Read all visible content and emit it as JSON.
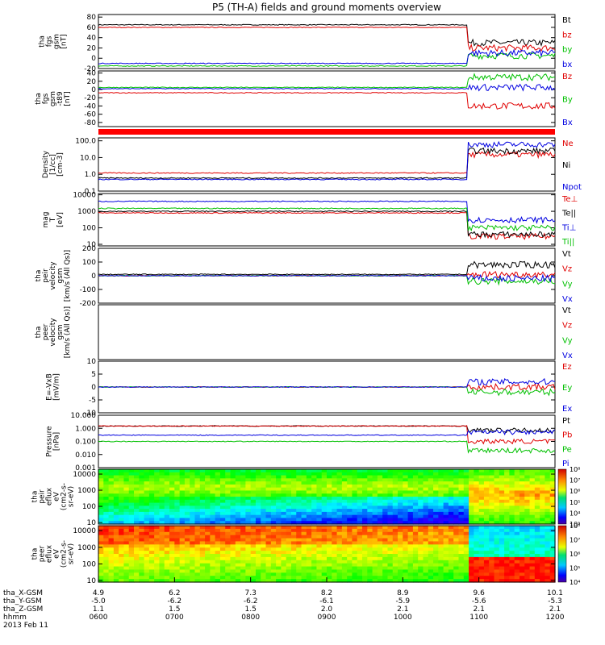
{
  "title": "P5 (TH-A) fields and ground moments overview",
  "panels": [
    {
      "id": "bgsm",
      "ylabel": [
        "tha",
        "fgs",
        "gsm",
        "[nT]"
      ],
      "ymin": -20,
      "ymax": 85,
      "ticks": [
        "-20",
        "0",
        "20",
        "40",
        "60",
        "80"
      ],
      "legend": [
        {
          "t": "Bt",
          "c": "#000000"
        },
        {
          "t": "bz",
          "c": "#e00000"
        },
        {
          "t": "by",
          "c": "#00c000"
        },
        {
          "t": "bx",
          "c": "#0000e0"
        }
      ]
    },
    {
      "id": "bdip",
      "ylabel": [
        "tha",
        "fgs",
        "gsm",
        "-t89",
        "[nT]"
      ],
      "ymin": -90,
      "ymax": 45,
      "ticks": [
        "-80",
        "-60",
        "-40",
        "-20",
        "0",
        "20",
        "40"
      ],
      "legend": [
        {
          "t": "Bz",
          "c": "#e00000"
        },
        {
          "t": "By",
          "c": "#00c000"
        },
        {
          "t": "Bx",
          "c": "#0000e0"
        }
      ]
    },
    {
      "id": "dens",
      "ylabel": [
        "Density",
        "[1/cc]",
        "[cm-3]"
      ],
      "log": true,
      "ymin": 0.1,
      "ymax": 150,
      "ticks": [
        "0.1",
        "1.0",
        "10.0",
        "100.0"
      ],
      "legend": [
        {
          "t": "Ne",
          "c": "#e00000"
        },
        {
          "t": "Ni",
          "c": "#000000"
        },
        {
          "t": "Npot",
          "c": "#0000e0"
        }
      ]
    },
    {
      "id": "temp",
      "ylabel": [
        "mag",
        "T",
        "[eV]"
      ],
      "log": true,
      "ymin": 8,
      "ymax": 12000,
      "ticks": [
        "10",
        "100",
        "1000",
        "10000"
      ],
      "legend": [
        {
          "t": "Te⊥",
          "c": "#e00000"
        },
        {
          "t": "Te||",
          "c": "#000000"
        },
        {
          "t": "Ti⊥",
          "c": "#0000e0"
        },
        {
          "t": "Ti||",
          "c": "#00c000"
        }
      ]
    },
    {
      "id": "vi",
      "ylabel": [
        "tha",
        "peir",
        "velocity",
        "gsm",
        "[km/s (All Qs)]"
      ],
      "ymin": -200,
      "ymax": 200,
      "ticks": [
        "-200",
        "-100",
        "0",
        "100",
        "200"
      ],
      "legend": [
        {
          "t": "Vt",
          "c": "#000000"
        },
        {
          "t": "Vz",
          "c": "#e00000"
        },
        {
          "t": "Vy",
          "c": "#00c000"
        },
        {
          "t": "Vx",
          "c": "#0000e0"
        }
      ]
    },
    {
      "id": "ve",
      "ylabel": [
        "tha",
        "peer",
        "velocity",
        "gsm",
        "[km/s (All Qs)]"
      ],
      "ymin": -200,
      "ymax": 200,
      "ticks": [],
      "legend": [
        {
          "t": "Vt",
          "c": "#000000"
        },
        {
          "t": "Vz",
          "c": "#e00000"
        },
        {
          "t": "Vy",
          "c": "#00c000"
        },
        {
          "t": "Vx",
          "c": "#0000e0"
        }
      ]
    },
    {
      "id": "efld",
      "ylabel": [
        "E=-VxB",
        "[mV/m]"
      ],
      "ymin": -10,
      "ymax": 10,
      "ticks": [
        "-10",
        "-5",
        "0",
        "5",
        "10"
      ],
      "legend": [
        {
          "t": "Ez",
          "c": "#e00000"
        },
        {
          "t": "Ey",
          "c": "#00c000"
        },
        {
          "t": "Ex",
          "c": "#0000e0"
        }
      ]
    },
    {
      "id": "pres",
      "ylabel": [
        "Pressure",
        "[nPa]"
      ],
      "log": true,
      "ymin": 0.001,
      "ymax": 10,
      "ticks": [
        "0.001",
        "0.010",
        "0.100",
        "1.000",
        "10.000"
      ],
      "legend": [
        {
          "t": "Pt",
          "c": "#000000"
        },
        {
          "t": "Pb",
          "c": "#e00000"
        },
        {
          "t": "Pe",
          "c": "#00c000"
        },
        {
          "t": "Pi",
          "c": "#0000e0"
        }
      ]
    },
    {
      "id": "ispec",
      "ylabel": [
        "tha",
        "peir",
        "eflux",
        "eV",
        "(cm2-s-",
        "sr-eV)"
      ],
      "log": true,
      "ymin": 8,
      "ymax": 20000,
      "ticks": [
        "10",
        "100",
        "1000",
        "10000"
      ],
      "colorbar": [
        "10³",
        "10⁴",
        "10⁵",
        "10⁶",
        "10⁷",
        "10⁸"
      ]
    },
    {
      "id": "espec",
      "ylabel": [
        "tha",
        "peer",
        "eflux",
        "eV",
        "(cm2-s-",
        "sr-eV)"
      ],
      "log": true,
      "ymin": 8,
      "ymax": 20000,
      "ticks": [
        "10",
        "100",
        "1000",
        "10000"
      ],
      "colorbar": [
        "10⁴",
        "10⁵",
        "10⁶",
        "10⁷",
        "10⁸"
      ]
    }
  ],
  "xaxis": {
    "rows": [
      {
        "label": "tha_X-GSM",
        "values": [
          "4.9",
          "6.2",
          "7.3",
          "8.2",
          "8.9",
          "9.6",
          "10.1"
        ]
      },
      {
        "label": "tha_Y-GSM",
        "values": [
          "-5.0",
          "-6.2",
          "-6.2",
          "-6.1",
          "-5.9",
          "-5.6",
          "-5.3"
        ]
      },
      {
        "label": "tha_Z-GSM",
        "values": [
          "1.1",
          "1.5",
          "1.5",
          "2.0",
          "2.1",
          "2.1",
          "2.1"
        ]
      },
      {
        "label": "hhmm",
        "values": [
          "0600",
          "0700",
          "0800",
          "0900",
          "1000",
          "1100",
          "1200"
        ]
      }
    ],
    "date": "2013 Feb 11"
  },
  "chart_data": {
    "type": "line",
    "title": "P5 (TH-A) fields and ground moments overview",
    "time_range_hhmm": [
      "0600",
      "1200"
    ],
    "event_time_hhmm": "1050",
    "panels": [
      {
        "name": "tha fgs gsm [nT]",
        "series": [
          {
            "name": "Bt",
            "before": 65,
            "after": 30
          },
          {
            "name": "bz",
            "before": 60,
            "after": 20
          },
          {
            "name": "by",
            "before": -15,
            "after": 5
          },
          {
            "name": "bx",
            "before": -10,
            "after": 10
          }
        ]
      },
      {
        "name": "tha fgs gsm-t89 [nT]",
        "series": [
          {
            "name": "Bz",
            "before": -8,
            "after": -40
          },
          {
            "name": "By",
            "before": 5,
            "after": 30
          },
          {
            "name": "Bx",
            "before": 2,
            "after": 5
          }
        ]
      },
      {
        "name": "Density [1/cc] [cm-3]",
        "series": [
          {
            "name": "Ne",
            "before": 1.2,
            "after": 15
          },
          {
            "name": "Ni",
            "before": 0.6,
            "after": 25
          },
          {
            "name": "Npot",
            "before": 0.5,
            "after": 60
          }
        ]
      },
      {
        "name": "magT [eV]",
        "series": [
          {
            "name": "Te⊥",
            "before": 800,
            "after": 30
          },
          {
            "name": "Te||",
            "before": 1000,
            "after": 40
          },
          {
            "name": "Ti⊥",
            "before": 4000,
            "after": 300
          },
          {
            "name": "Ti||",
            "before": 1500,
            "after": 100
          }
        ]
      },
      {
        "name": "tha peir velocity gsm [km/s (All Qs)]",
        "series": [
          {
            "name": "Vt",
            "before": 10,
            "after": 80
          },
          {
            "name": "Vz",
            "before": 0,
            "after": 10
          },
          {
            "name": "Vy",
            "before": 0,
            "after": -40
          },
          {
            "name": "Vx",
            "before": 0,
            "after": -20
          }
        ]
      },
      {
        "name": "E=-VxB [mV/m]",
        "series": [
          {
            "name": "Ez",
            "before": 0,
            "after": 0
          },
          {
            "name": "Ey",
            "before": 0,
            "after": -2
          },
          {
            "name": "Ex",
            "before": 0,
            "after": 2
          }
        ]
      },
      {
        "name": "Pressure [nPa]",
        "series": [
          {
            "name": "Pt",
            "before": 1.5,
            "after": 0.7
          },
          {
            "name": "Pb",
            "before": 1.5,
            "after": 0.1
          },
          {
            "name": "Pe",
            "before": 0.1,
            "after": 0.02
          },
          {
            "name": "Pi",
            "before": 0.3,
            "after": 0.5
          }
        ]
      }
    ]
  }
}
